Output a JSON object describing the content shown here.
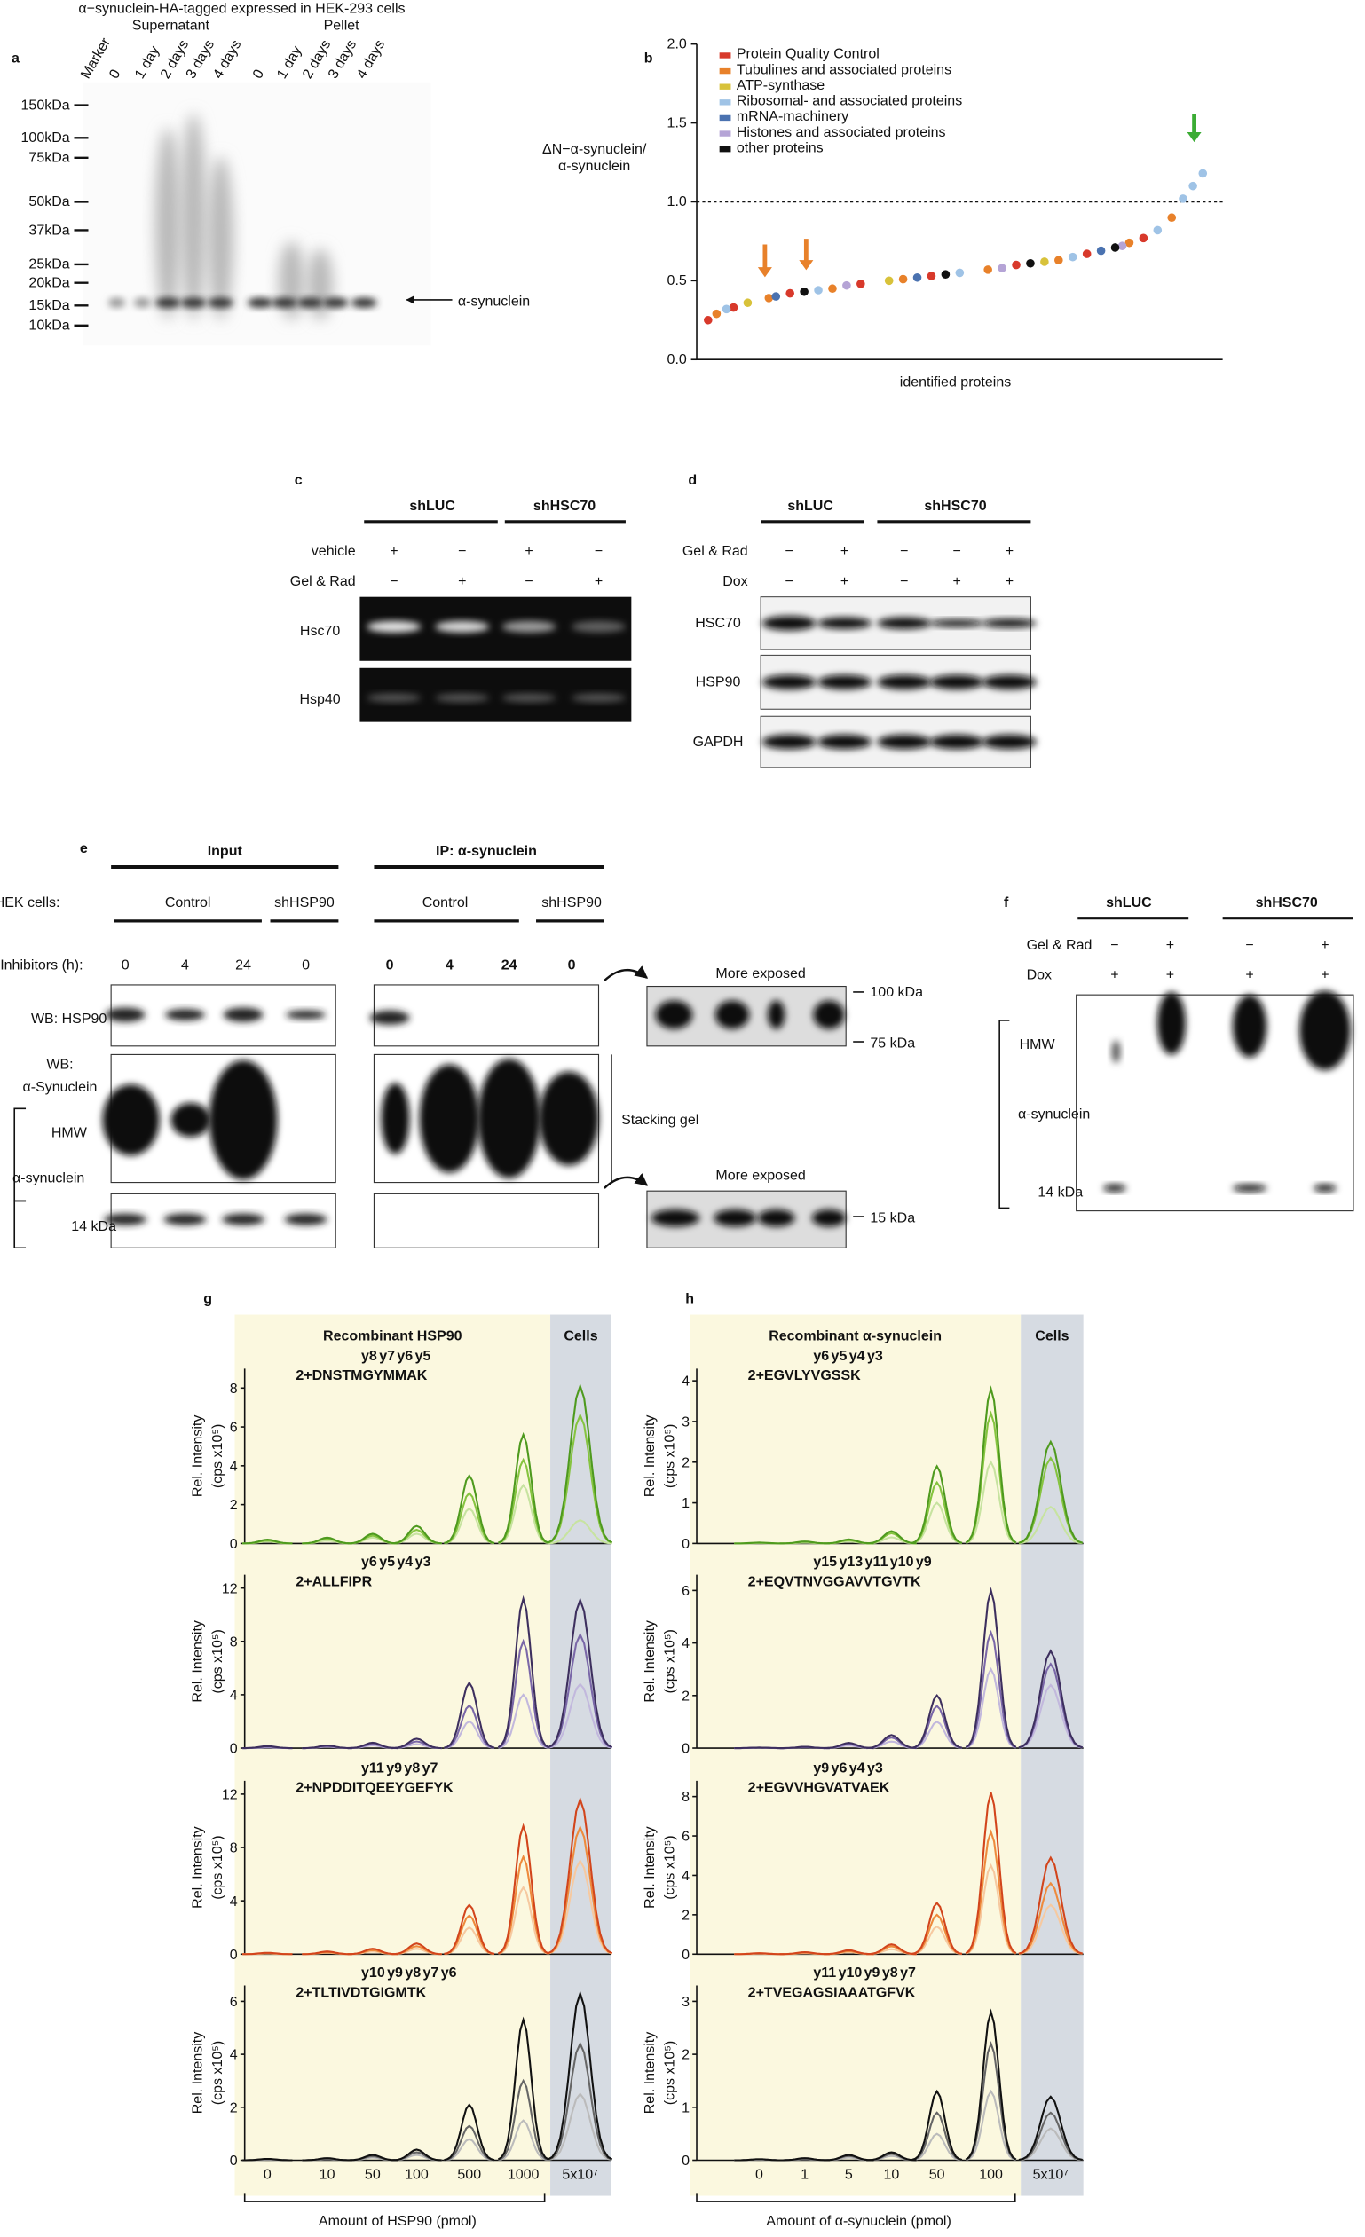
{
  "panel_a": {
    "label": "a",
    "title": "α−synuclein-HA-tagged expressed in HEK-293 cells",
    "groups": [
      "Supernatant",
      "Pellet"
    ],
    "lanes": [
      "Marker",
      "0",
      "1 day",
      "2 days",
      "3 days",
      "4 days",
      "0",
      "1 day",
      "2 days",
      "3 days",
      "4 days"
    ],
    "markers": [
      "150kDa",
      "100kDa",
      "75kDa",
      "50kDa",
      "37kDa",
      "25kDa",
      "20kDa",
      "15kDa",
      "10kDa"
    ],
    "band_label": "α-synuclein"
  },
  "panel_b": {
    "label": "b",
    "type": "scatter",
    "y_label": [
      "ΔN−α-synuclein/",
      "α-synuclein"
    ],
    "x_label": "identified proteins",
    "xlim": [
      0,
      360
    ],
    "ylim": [
      0,
      2
    ],
    "yticks": [
      {
        "value": 0,
        "label": "0.0"
      },
      {
        "value": 0.5,
        "label": "0.5"
      },
      {
        "value": 1,
        "label": "1.0"
      },
      {
        "value": 1.5,
        "label": "1.5"
      },
      {
        "value": 2,
        "label": "2.0"
      }
    ],
    "reference_line": 1,
    "series": [
      {
        "name": "Protein Quality Control",
        "color": "#d8392b",
        "x": [
          2,
          20,
          60,
          110,
          160,
          220,
          270,
          310
        ],
        "values": [
          0.25,
          0.33,
          0.42,
          0.48,
          0.53,
          0.6,
          0.67,
          0.77
        ]
      },
      {
        "name": "Tubulines and associated proteins",
        "color": "#e8812a",
        "x": [
          8,
          45,
          90,
          140,
          200,
          250,
          300,
          330
        ],
        "values": [
          0.29,
          0.39,
          0.45,
          0.51,
          0.57,
          0.63,
          0.74,
          0.9
        ]
      },
      {
        "name": "ATP-synthase",
        "color": "#d8c23a",
        "x": [
          30,
          130,
          240
        ],
        "values": [
          0.36,
          0.5,
          0.62
        ]
      },
      {
        "name": "Ribosomal- and associated proteins",
        "color": "#9fc3e6",
        "x": [
          15,
          80,
          180,
          260,
          320,
          338,
          345,
          352
        ],
        "values": [
          0.32,
          0.44,
          0.55,
          0.65,
          0.82,
          1.02,
          1.1,
          1.18
        ]
      },
      {
        "name": "mRNA-machinery",
        "color": "#4a72b0",
        "x": [
          50,
          150,
          280
        ],
        "values": [
          0.4,
          0.52,
          0.69
        ]
      },
      {
        "name": "Histones and associated proteins",
        "color": "#b5a4d6",
        "x": [
          100,
          210,
          295
        ],
        "values": [
          0.47,
          0.58,
          0.72
        ]
      },
      {
        "name": "other proteins",
        "color": "#111111",
        "x": [
          70,
          170,
          230,
          290
        ],
        "values": [
          0.43,
          0.54,
          0.61,
          0.71
        ]
      }
    ]
  },
  "panel_c": {
    "label": "c",
    "groups": [
      "shLUC",
      "shHSC70"
    ],
    "rows": [
      {
        "label": "vehicle",
        "signs": [
          "+",
          "−",
          "+",
          "−"
        ]
      },
      {
        "label": "Gel & Rad",
        "signs": [
          "−",
          "+",
          "−",
          "+"
        ]
      }
    ],
    "blots": [
      "Hsc70",
      "Hsp40"
    ]
  },
  "panel_d": {
    "label": "d",
    "groups": [
      "shLUC",
      "shHSC70"
    ],
    "rows": [
      {
        "label": "Gel & Rad",
        "signs": [
          "−",
          "+",
          "−",
          "−",
          "+"
        ]
      },
      {
        "label": "Dox",
        "signs": [
          "−",
          "+",
          "−",
          "+",
          "+"
        ]
      }
    ],
    "blots": [
      "HSC70",
      "HSP90",
      "GAPDH"
    ]
  },
  "panel_e": {
    "label": "e",
    "sections": [
      "Input",
      "IP: α-synuclein"
    ],
    "cells_label": "HEK cells:",
    "cell_groups": [
      "Control",
      "shHSP90",
      "Control",
      "shHSP90"
    ],
    "inhibitors_label": "Inhibitors (h):",
    "inhibitors": [
      0,
      4,
      24,
      0,
      0,
      4,
      24,
      0
    ],
    "wb_hsp90": "WB: HSP90",
    "wb_syn": [
      "WB:",
      "α-Synuclein"
    ],
    "hmw": "HMW",
    "syn": "α-synuclein",
    "kda14": "14 kDa",
    "more_exposed": "More exposed",
    "kda100": "100 kDa",
    "kda75": "75 kDa",
    "kda15": "15 kDa",
    "stacking": "Stacking gel"
  },
  "panel_f": {
    "label": "f",
    "groups": [
      "shLUC",
      "shHSC70"
    ],
    "rows": [
      {
        "label": "Gel & Rad",
        "signs": [
          "−",
          "+",
          "−",
          "+"
        ]
      },
      {
        "label": "Dox",
        "signs": [
          "+",
          "+",
          "+",
          "+"
        ]
      }
    ],
    "hmw": "HMW",
    "syn": "α-synuclein",
    "kda14": "14 kDa"
  },
  "panel_g": {
    "label": "g",
    "header": "Recombinant HSP90",
    "cells_label": "Cells",
    "y_label": "Rel. Intensity",
    "y_unit": "(cps x10⁵)",
    "categories": [
      "0",
      "10",
      "50",
      "100",
      "500",
      "1000",
      "5x10⁷"
    ],
    "x_label": "Amount of HSP90 (pmol)",
    "plots": [
      {
        "peptide": "2+DNSTMGYMMAK",
        "ions": [
          {
            "label": "y8",
            "color": "#4e9a1e"
          },
          {
            "label": "y7",
            "color": "#6aa832"
          },
          {
            "label": "y6",
            "color": "#86c440"
          },
          {
            "label": "y5",
            "color": "#c7e3a0"
          }
        ],
        "ylim": [
          0,
          9
        ],
        "yticks": [
          0,
          2,
          4,
          6,
          8
        ],
        "series": [
          {
            "color": "#4e9a1e",
            "values": [
              0.2,
              0.3,
              0.5,
              0.9,
              3.5,
              5.6,
              8.1
            ]
          },
          {
            "color": "#86c440",
            "values": [
              0.15,
              0.25,
              0.4,
              0.7,
              2.6,
              4.3,
              6.6
            ]
          },
          {
            "color": "#c7e3a0",
            "values": [
              0.1,
              0.15,
              0.3,
              0.5,
              1.8,
              3,
              1.2
            ]
          }
        ]
      },
      {
        "peptide": "2+ALLFIPR",
        "ions": [
          {
            "label": "y6",
            "color": "#3d2f5e"
          },
          {
            "label": "y5",
            "color": "#5c4c86"
          },
          {
            "label": "y4",
            "color": "#9487bd"
          },
          {
            "label": "y3",
            "color": "#c2b8dd"
          }
        ],
        "ylim": [
          0,
          13
        ],
        "yticks": [
          0,
          4,
          8,
          12
        ],
        "series": [
          {
            "color": "#3d2f5e",
            "values": [
              0.15,
              0.2,
              0.4,
              0.7,
              4.9,
              11.2,
              11.1
            ]
          },
          {
            "color": "#7a67a8",
            "values": [
              0.1,
              0.15,
              0.3,
              0.5,
              3.2,
              8,
              8.5
            ]
          },
          {
            "color": "#c2b8dd",
            "values": [
              0.05,
              0.1,
              0.2,
              0.3,
              2,
              4,
              4.8
            ]
          }
        ]
      },
      {
        "peptide": "2+NPDDITQEEYGEFYK",
        "ions": [
          {
            "label": "y11",
            "color": "#d2451c"
          },
          {
            "label": "y9",
            "color": "#e8702a"
          },
          {
            "label": "y8",
            "color": "#f0a060"
          },
          {
            "label": "y7",
            "color": "#f6c9a0"
          }
        ],
        "ylim": [
          0,
          13
        ],
        "yticks": [
          0,
          4,
          8,
          12
        ],
        "series": [
          {
            "color": "#d2451c",
            "values": [
              0.1,
              0.2,
              0.4,
              0.8,
              3.7,
              9.6,
              11.6
            ]
          },
          {
            "color": "#ee8a3c",
            "values": [
              0.08,
              0.15,
              0.3,
              0.6,
              2.9,
              7.3,
              9.5
            ]
          },
          {
            "color": "#f6c9a0",
            "values": [
              0.05,
              0.1,
              0.2,
              0.4,
              2,
              5,
              7
            ]
          }
        ]
      },
      {
        "peptide": "2+TLTIVDTGIGMTK",
        "ions": [
          {
            "label": "y10",
            "color": "#111111"
          },
          {
            "label": "y9",
            "color": "#444444"
          },
          {
            "label": "y8",
            "color": "#666666"
          },
          {
            "label": "y7",
            "color": "#888888"
          },
          {
            "label": "y6",
            "color": "#aaaaaa"
          }
        ],
        "ylim": [
          0,
          6.6
        ],
        "yticks": [
          0,
          2,
          4,
          6
        ],
        "series": [
          {
            "color": "#111111",
            "values": [
              0.05,
              0.08,
              0.2,
              0.4,
              2.1,
              5.3,
              6.3
            ]
          },
          {
            "color": "#666666",
            "values": [
              0.04,
              0.06,
              0.15,
              0.3,
              1.3,
              3,
              4.4
            ]
          },
          {
            "color": "#bbbbbb",
            "values": [
              0.02,
              0.04,
              0.1,
              0.2,
              0.8,
              1.5,
              2.5
            ]
          }
        ]
      }
    ]
  },
  "panel_h": {
    "label": "h",
    "header": "Recombinant α-synuclein",
    "cells_label": "Cells",
    "y_label": "Rel. Intensity",
    "y_unit": "(cps x10⁵)",
    "categories": [
      "0",
      "1",
      "5",
      "10",
      "50",
      "100",
      "5x10⁷"
    ],
    "x_label": "Amount of α-synuclein (pmol)",
    "plots": [
      {
        "peptide": "2+EGVLYVGSSK",
        "ions": [
          {
            "label": "y6",
            "color": "#4e9a1e"
          },
          {
            "label": "y5",
            "color": "#6aa832"
          },
          {
            "label": "y4",
            "color": "#86c440"
          },
          {
            "label": "y3",
            "color": "#c7e3a0"
          }
        ],
        "ylim": [
          0,
          4.3
        ],
        "yticks": [
          0,
          1,
          2,
          3,
          4
        ],
        "series": [
          {
            "color": "#4e9a1e",
            "values": [
              0.02,
              0.05,
              0.1,
              0.3,
              1.9,
              3.8,
              2.5
            ]
          },
          {
            "color": "#86c440",
            "values": [
              0.02,
              0.04,
              0.08,
              0.25,
              1.5,
              3.2,
              2.1
            ]
          },
          {
            "color": "#c7e3a0",
            "values": [
              0.01,
              0.02,
              0.05,
              0.15,
              1,
              2,
              0.9
            ]
          }
        ]
      },
      {
        "peptide": "2+EQVTNVGGAVVTGVTK",
        "ions": [
          {
            "label": "y15",
            "color": "#3d2f5e"
          },
          {
            "label": "y13",
            "color": "#5c4c86"
          },
          {
            "label": "y11",
            "color": "#9487bd"
          },
          {
            "label": "y10",
            "color": "#b3a8d3"
          },
          {
            "label": "y9",
            "color": "#d6cfea"
          }
        ],
        "ylim": [
          0,
          6.6
        ],
        "yticks": [
          0,
          2,
          4,
          6
        ],
        "series": [
          {
            "color": "#3d2f5e",
            "values": [
              0.02,
              0.05,
              0.2,
              0.5,
              2,
              6,
              3.7
            ]
          },
          {
            "color": "#7a67a8",
            "values": [
              0.02,
              0.04,
              0.15,
              0.4,
              1.6,
              4.4,
              3.2
            ]
          },
          {
            "color": "#c2b8dd",
            "values": [
              0.01,
              0.03,
              0.1,
              0.25,
              1,
              3,
              2.4
            ]
          }
        ]
      },
      {
        "peptide": "2+EGVVHGVATVAEK",
        "ions": [
          {
            "label": "y9",
            "color": "#d2451c"
          },
          {
            "label": "y6",
            "color": "#e8702a"
          },
          {
            "label": "y4",
            "color": "#f0a060"
          },
          {
            "label": "y3",
            "color": "#f6c9a0"
          }
        ],
        "ylim": [
          0,
          8.8
        ],
        "yticks": [
          0,
          2,
          4,
          6,
          8
        ],
        "series": [
          {
            "color": "#d2451c",
            "values": [
              0.05,
              0.1,
              0.2,
              0.5,
              2.6,
              8.2,
              4.9
            ]
          },
          {
            "color": "#ee8a3c",
            "values": [
              0.04,
              0.08,
              0.15,
              0.4,
              2,
              6.2,
              3.6
            ]
          },
          {
            "color": "#f6c9a0",
            "values": [
              0.02,
              0.05,
              0.1,
              0.25,
              1.4,
              4.5,
              2.5
            ]
          }
        ]
      },
      {
        "peptide": "2+TVEGAGSIAAATGFVK",
        "ions": [
          {
            "label": "y11",
            "color": "#111111"
          },
          {
            "label": "y10",
            "color": "#444444"
          },
          {
            "label": "y9",
            "color": "#666666"
          },
          {
            "label": "y8",
            "color": "#888888"
          },
          {
            "label": "y7",
            "color": "#aaaaaa"
          }
        ],
        "ylim": [
          0,
          3.3
        ],
        "yticks": [
          0,
          1,
          2,
          3
        ],
        "series": [
          {
            "color": "#111111",
            "values": [
              0.02,
              0.04,
              0.1,
              0.15,
              1.3,
              2.8,
              1.2
            ]
          },
          {
            "color": "#666666",
            "values": [
              0.02,
              0.03,
              0.08,
              0.12,
              0.9,
              2.2,
              0.9
            ]
          },
          {
            "color": "#bbbbbb",
            "values": [
              0.01,
              0.02,
              0.05,
              0.08,
              0.5,
              1.3,
              0.6
            ]
          }
        ]
      }
    ]
  }
}
